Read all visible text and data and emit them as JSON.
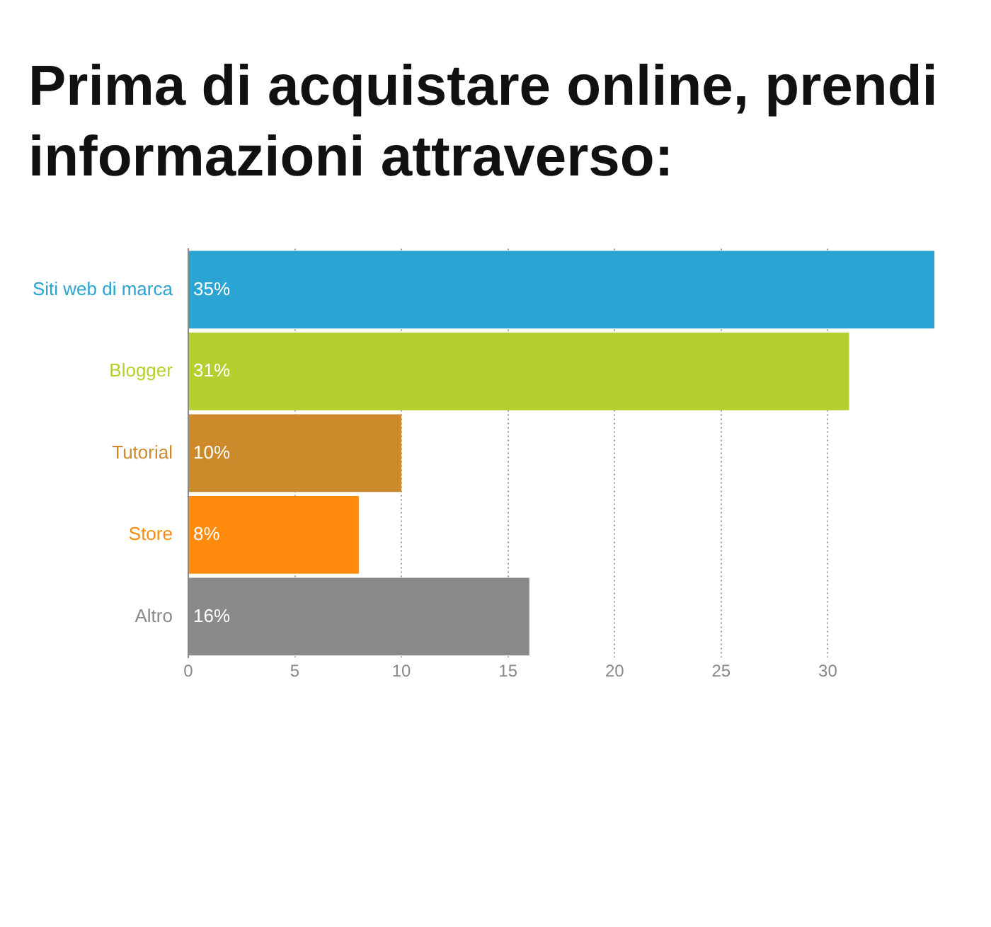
{
  "chart_data": {
    "type": "bar",
    "orientation": "horizontal",
    "title": "Prima di acquistare online, prendi informazioni attraverso:",
    "categories": [
      "Siti web di marca",
      "Blogger",
      "Tutorial",
      "Store",
      "Altro"
    ],
    "values": [
      35,
      31,
      10,
      8,
      16
    ],
    "value_labels": [
      "35%",
      "31%",
      "10%",
      "8%",
      "16%"
    ],
    "colors": [
      "#2aa4d3",
      "#b5d02e",
      "#cd8a2a",
      "#ff8a0b",
      "#8a8a8a"
    ],
    "xlim": [
      0,
      35
    ],
    "xticks": [
      0,
      5,
      10,
      15,
      20,
      25,
      30
    ],
    "grid": "x",
    "legend": false
  }
}
